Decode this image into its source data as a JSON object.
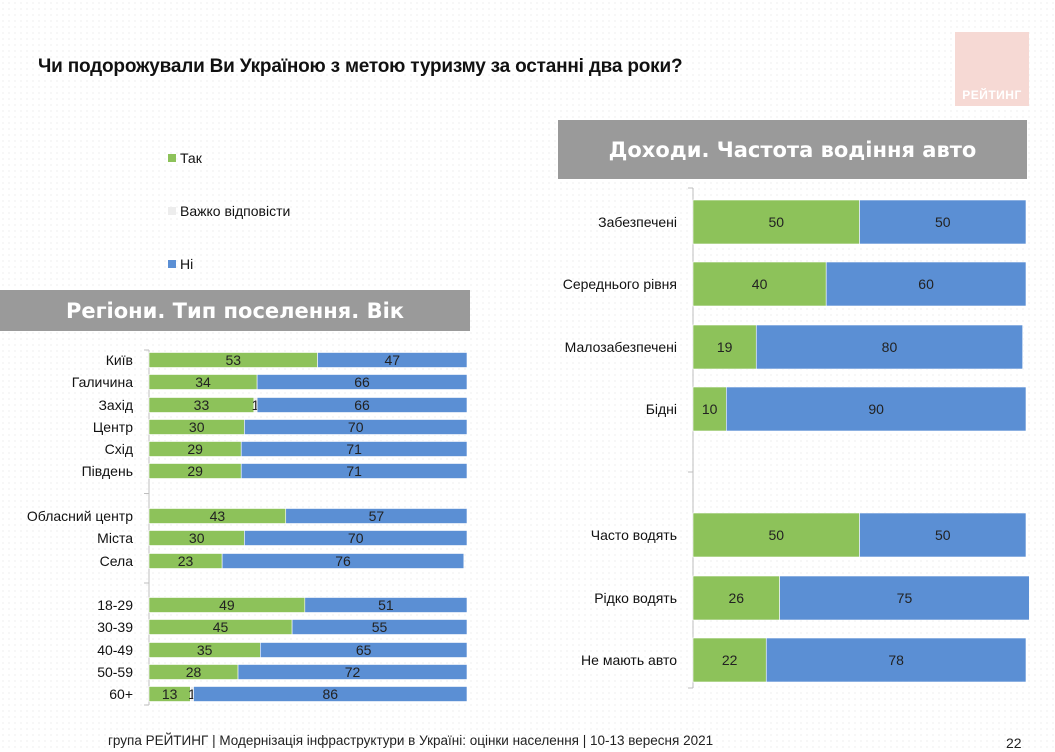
{
  "title": "Чи подорожували Ви Україною з метою туризму за останні два роки?",
  "logo_text": "РЕЙТИНГ",
  "legend": [
    {
      "label": "Так",
      "color": "#8dc25a"
    },
    {
      "label": "Важко відповісти",
      "color": "#ededed"
    },
    {
      "label": "Ні",
      "color": "#5b8fd4"
    }
  ],
  "banner_left": "Регіони. Тип поселення. Вік",
  "banner_right": "Доходи. Частота водіння авто",
  "footer": "група РЕЙТИНГ | Модернізація інфраструктури в Україні: оцінки населення | 10-13 вересня 2021",
  "page_number": "22",
  "colors": {
    "yes": "#8dc25a",
    "hard": "#ededed",
    "no": "#5b8fd4"
  },
  "chart_data": [
    {
      "type": "bar",
      "orientation": "horizontal",
      "stacked": true,
      "percent": true,
      "title": "Регіони. Тип поселення. Вік",
      "categories": [
        "Київ",
        "Галичина",
        "Захід",
        "Центр",
        "Схід",
        "Південь",
        "Обласний центр",
        "Міста",
        "Села",
        "18-29",
        "30-39",
        "40-49",
        "50-59",
        "60+"
      ],
      "groups": [
        6,
        3,
        5
      ],
      "series": [
        {
          "name": "Так",
          "values": [
            53,
            34,
            33,
            30,
            29,
            29,
            43,
            30,
            23,
            49,
            45,
            35,
            28,
            13
          ]
        },
        {
          "name": "Важко відповісти",
          "values": [
            0,
            0,
            1,
            0,
            0,
            0,
            0,
            0,
            0,
            0,
            0,
            0,
            0,
            1
          ]
        },
        {
          "name": "Ні",
          "values": [
            47,
            66,
            66,
            70,
            71,
            71,
            57,
            70,
            76,
            51,
            55,
            65,
            72,
            86
          ]
        }
      ],
      "xlim": [
        0,
        100
      ]
    },
    {
      "type": "bar",
      "orientation": "horizontal",
      "stacked": true,
      "percent": true,
      "title": "Доходи. Частота водіння авто",
      "categories": [
        "Забезпечені",
        "Середнього рівня",
        "Малозабезпечені",
        "Бідні",
        "Часто водять",
        "Рідко водять",
        "Не мають авто"
      ],
      "groups": [
        4,
        3
      ],
      "series": [
        {
          "name": "Так",
          "values": [
            50,
            40,
            19,
            10,
            50,
            26,
            22
          ]
        },
        {
          "name": "Важко відповісти",
          "values": [
            0,
            0,
            0,
            0,
            0,
            0,
            0
          ]
        },
        {
          "name": "Ні",
          "values": [
            50,
            60,
            80,
            90,
            50,
            75,
            78
          ]
        }
      ],
      "xlim": [
        0,
        100
      ]
    }
  ]
}
